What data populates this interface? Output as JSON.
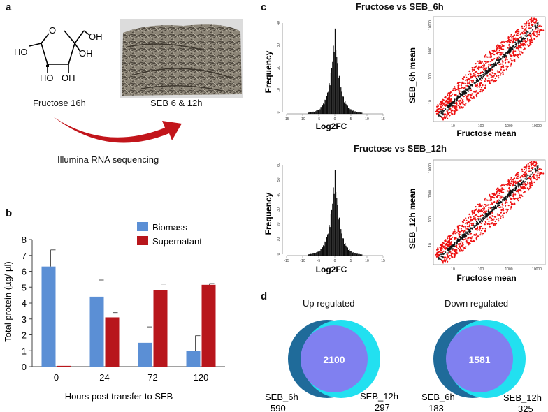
{
  "panel_a": {
    "letter": "a",
    "molecule_label": "Fructose 16h",
    "photo_label": "SEB 6 & 12h",
    "arrow_label": "Illumina RNA sequencing",
    "atoms": {
      "oh1": "HO",
      "oh2": "OH",
      "oh3": "OH",
      "oh4": "HO",
      "oh5": "OH",
      "o": "O"
    }
  },
  "panel_b": {
    "letter": "b",
    "chart_data": {
      "type": "bar",
      "categories": [
        "0",
        "24",
        "72",
        "120"
      ],
      "series": [
        {
          "name": "Biomass",
          "color": "#5b8fd5",
          "values": [
            6.3,
            4.4,
            1.5,
            1.0
          ],
          "errors": [
            1.05,
            1.05,
            1.0,
            0.95
          ]
        },
        {
          "name": "Supernatant",
          "color": "#b8161c",
          "values": [
            0.05,
            3.1,
            4.8,
            5.15
          ],
          "errors": [
            0.0,
            0.3,
            0.4,
            0.08
          ]
        }
      ],
      "xlabel": "Hours post transfer to SEB",
      "ylabel": "Total protein (µg/ µl)",
      "ylim": [
        0,
        8
      ],
      "yticks": [
        "0",
        "1",
        "2",
        "3",
        "4",
        "5",
        "6",
        "7",
        "8"
      ],
      "legend": "top-right"
    }
  },
  "panel_c": {
    "letter": "c",
    "row1_title": "Fructose vs SEB_6h",
    "row2_title": "Fructose vs SEB_12h",
    "hist_ylabel": "Frequency",
    "hist_xlabel": "Log2FC",
    "scatter_xlabel": "Fructose mean",
    "scatter1_ylabel": "SEB_6h mean",
    "scatter2_ylabel": "SEB_12h mean",
    "hist_xticks": [
      "-15",
      "-10",
      "-5",
      "0",
      "5",
      "10",
      "15"
    ],
    "hist1_yticks": [
      "0",
      "10",
      "20",
      "30",
      "40"
    ],
    "hist2_yticks": [
      "0",
      "10",
      "20",
      "30",
      "40",
      "50",
      "60"
    ],
    "scatter_xticks": [
      "10",
      "100",
      "1000",
      "10000"
    ],
    "scatter1_yticks": [
      "10",
      "100",
      "1000",
      "10000"
    ],
    "scatter2_yticks": [
      "10",
      "100",
      "1000",
      "10000"
    ]
  },
  "panel_d": {
    "letter": "d",
    "up": {
      "title": "Up regulated",
      "overlap": "2100",
      "left_label": "SEB_6h",
      "left_count": "590",
      "right_label": "SEB_12h",
      "right_count": "297"
    },
    "down": {
      "title": "Down regulated",
      "overlap": "1581",
      "left_label": "SEB_6h",
      "left_count": "183",
      "right_label": "SEB_12h",
      "right_count": "325"
    }
  },
  "colors": {
    "biomass": "#5b8fd5",
    "supernatant": "#b8161c",
    "venn_left": "#1f6b9a",
    "venn_right": "#22e0f0",
    "venn_overlap": "#8080f0",
    "arrow": "#c2151b",
    "scatter_red": "#ee1111"
  }
}
